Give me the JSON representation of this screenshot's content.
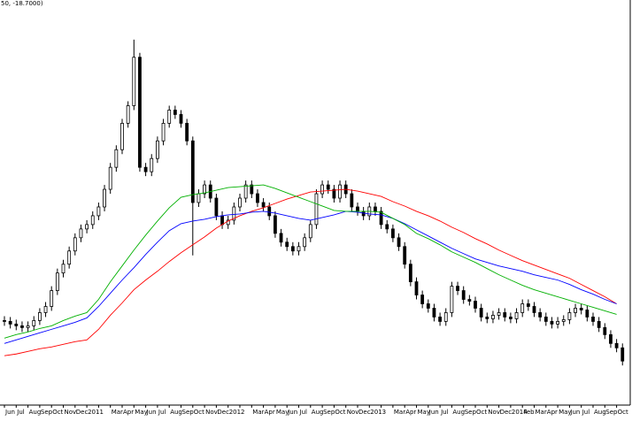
{
  "chart_data": {
    "type": "candlestick",
    "title": "50, -18.7000)",
    "ylim": [
      0,
      460
    ],
    "categories": [
      "Jun",
      "Jul",
      "Aug",
      "Sep",
      "Oct",
      "Nov",
      "Dec",
      "2011",
      null,
      "Mar",
      "Apr",
      "May",
      "Jun",
      "Jul",
      "Aug",
      "Sep",
      "Oct",
      "Nov",
      "Dec",
      "2012",
      null,
      "Mar",
      "Apr",
      "May",
      "Jun",
      "Jul",
      "Aug",
      "Sep",
      "Oct",
      "Nov",
      "Dec",
      "2013",
      null,
      "Mar",
      "Apr",
      "May",
      "Jun",
      "Jul",
      "Aug",
      "Sep",
      "Oct",
      "Nov",
      "Dec",
      "2014",
      "Feb",
      "Mar",
      "Apr",
      "May",
      "Jun",
      "Jul",
      "Aug",
      "Sep",
      "Oct"
    ],
    "candles": {
      "up_color": "#ffffff",
      "down_color": "#000000",
      "open": [
        96,
        95,
        92,
        90,
        88,
        90,
        96,
        105,
        112,
        130,
        150,
        160,
        175,
        190,
        200,
        205,
        215,
        225,
        245,
        270,
        290,
        320,
        340,
        395,
        270,
        265,
        280,
        300,
        320,
        335,
        330,
        320,
        300,
        230,
        240,
        250,
        235,
        215,
        205,
        210,
        225,
        235,
        250,
        240,
        230,
        225,
        215,
        195,
        185,
        180,
        175,
        180,
        190,
        205,
        240,
        250,
        245,
        235,
        250,
        240,
        225,
        220,
        215,
        225,
        220,
        205,
        200,
        190,
        180,
        160,
        140,
        125,
        115,
        110,
        100,
        95,
        105,
        135,
        130,
        120,
        118,
        110,
        100,
        98,
        102,
        105,
        100,
        98,
        105,
        115,
        112,
        105,
        100,
        95,
        92,
        95,
        97,
        105,
        110,
        108,
        100,
        95,
        88,
        80,
        70,
        65
      ],
      "high": [
        101,
        100,
        97,
        95,
        95,
        101,
        110,
        117,
        135,
        155,
        165,
        180,
        195,
        205,
        210,
        220,
        230,
        250,
        275,
        295,
        325,
        345,
        415,
        400,
        275,
        285,
        305,
        325,
        340,
        340,
        335,
        325,
        305,
        245,
        255,
        255,
        240,
        220,
        215,
        230,
        240,
        255,
        255,
        245,
        235,
        230,
        220,
        200,
        190,
        185,
        185,
        195,
        210,
        245,
        255,
        255,
        250,
        255,
        255,
        245,
        230,
        225,
        230,
        230,
        225,
        210,
        205,
        195,
        185,
        165,
        145,
        130,
        120,
        115,
        105,
        110,
        140,
        140,
        135,
        125,
        123,
        115,
        105,
        107,
        110,
        110,
        105,
        110,
        120,
        120,
        117,
        110,
        105,
        100,
        100,
        102,
        110,
        115,
        115,
        113,
        105,
        100,
        93,
        85,
        75,
        70
      ],
      "low": [
        90,
        87,
        85,
        83,
        83,
        85,
        91,
        100,
        107,
        125,
        145,
        155,
        170,
        185,
        195,
        200,
        210,
        220,
        240,
        265,
        285,
        315,
        335,
        265,
        260,
        260,
        275,
        295,
        315,
        325,
        315,
        295,
        170,
        225,
        235,
        230,
        210,
        200,
        200,
        205,
        220,
        230,
        235,
        225,
        220,
        210,
        190,
        180,
        175,
        170,
        170,
        175,
        185,
        200,
        235,
        240,
        230,
        230,
        235,
        220,
        215,
        210,
        210,
        215,
        200,
        195,
        185,
        175,
        155,
        135,
        120,
        110,
        105,
        95,
        90,
        90,
        100,
        125,
        115,
        113,
        105,
        95,
        93,
        93,
        97,
        95,
        93,
        93,
        100,
        107,
        100,
        95,
        90,
        87,
        87,
        90,
        92,
        100,
        103,
        95,
        90,
        83,
        75,
        65,
        60,
        45
      ],
      "close": [
        95,
        92,
        90,
        88,
        90,
        96,
        105,
        112,
        130,
        150,
        160,
        175,
        190,
        200,
        205,
        215,
        225,
        245,
        270,
        290,
        320,
        340,
        395,
        270,
        265,
        280,
        300,
        320,
        335,
        330,
        320,
        300,
        230,
        240,
        250,
        235,
        215,
        205,
        210,
        225,
        235,
        250,
        240,
        230,
        225,
        215,
        195,
        185,
        180,
        175,
        180,
        190,
        205,
        240,
        250,
        245,
        235,
        250,
        240,
        225,
        220,
        215,
        225,
        220,
        205,
        200,
        190,
        180,
        160,
        140,
        125,
        115,
        110,
        100,
        95,
        105,
        135,
        130,
        120,
        118,
        110,
        100,
        98,
        102,
        105,
        100,
        98,
        105,
        115,
        112,
        105,
        100,
        95,
        92,
        95,
        97,
        105,
        110,
        108,
        100,
        95,
        88,
        80,
        70,
        65,
        50
      ]
    },
    "series": [
      {
        "color": "#ff0000",
        "values": [
          56,
          58,
          61,
          64,
          66,
          69,
          72,
          74,
          86,
          102,
          116,
          131,
          142,
          152,
          163,
          173,
          182,
          191,
          201,
          209,
          215,
          220,
          224,
          229,
          234,
          238,
          242,
          243,
          244,
          245,
          243,
          240,
          237,
          231,
          226,
          220,
          215,
          209,
          202,
          196,
          189,
          183,
          176,
          170,
          164,
          159,
          154,
          149,
          144,
          137,
          130,
          123,
          115
        ]
      },
      {
        "color": "#0000ff",
        "values": [
          70,
          74,
          78,
          82,
          86,
          90,
          94,
          99,
          112,
          127,
          142,
          156,
          171,
          185,
          198,
          206,
          209,
          211,
          214,
          216,
          217,
          219,
          220,
          218,
          215,
          212,
          210,
          213,
          216,
          220,
          219,
          217,
          216,
          212,
          206,
          199,
          192,
          185,
          178,
          172,
          166,
          162,
          158,
          155,
          152,
          148,
          145,
          142,
          137,
          131,
          126,
          120,
          115
        ]
      },
      {
        "color": "#00b000",
        "values": [
          76,
          80,
          83,
          87,
          90,
          96,
          101,
          105,
          120,
          140,
          158,
          176,
          193,
          209,
          224,
          236,
          239,
          241,
          244,
          247,
          248,
          249,
          250,
          246,
          241,
          236,
          231,
          226,
          221,
          220,
          220,
          220,
          219,
          212,
          205,
          195,
          189,
          182,
          174,
          168,
          162,
          155,
          148,
          142,
          136,
          131,
          127,
          123,
          119,
          115,
          111,
          107,
          103
        ]
      }
    ]
  }
}
